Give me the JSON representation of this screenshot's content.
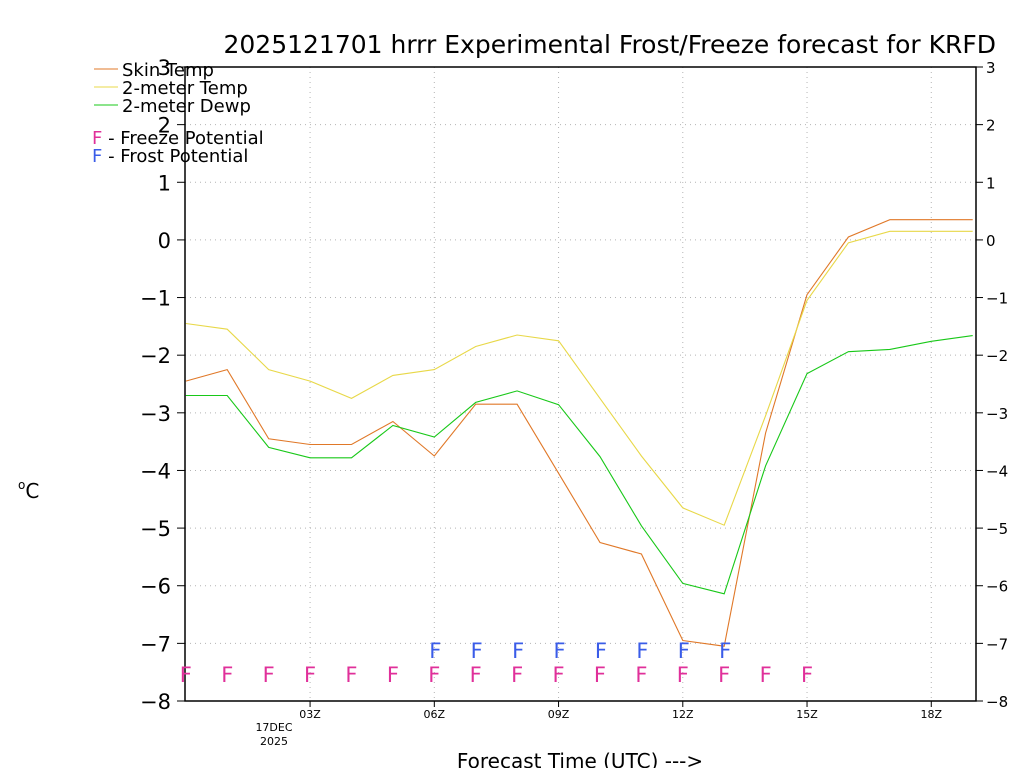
{
  "chart_data": {
    "type": "line",
    "title": "2025121701 hrrr Experimental Frost/Freeze forecast for KRFD",
    "xlabel": "Forecast Time (UTC) --->",
    "ylabel": "°C",
    "ylabel_superscript": "o",
    "ylabel_unit": "C",
    "ylim": [
      -8,
      3
    ],
    "y_ticks_left": [
      "-8",
      "-7",
      "-6",
      "-5",
      "-4",
      "-3",
      "-2",
      "-1",
      "0",
      "1",
      "2",
      "3"
    ],
    "y_ticks_right": [
      "-8",
      "-7",
      "-6",
      "-5",
      "-4",
      "-3",
      "-2",
      "-1",
      "0",
      "1",
      "2",
      "3"
    ],
    "x_hours": [
      0,
      1,
      2,
      3,
      4,
      5,
      6,
      7,
      8,
      9,
      10,
      11,
      12,
      13,
      14,
      15,
      16,
      17,
      18,
      19
    ],
    "x_ticks": [
      {
        "hour": 3,
        "label": "03Z"
      },
      {
        "hour": 6,
        "label": "06Z"
      },
      {
        "hour": 9,
        "label": "09Z"
      },
      {
        "hour": 12,
        "label": "12Z"
      },
      {
        "hour": 15,
        "label": "15Z"
      },
      {
        "hour": 18,
        "label": "18Z"
      }
    ],
    "date_label_line1": "17DEC",
    "date_label_line2": "2025",
    "series": [
      {
        "name": "Skin Temp",
        "color": "#e07828",
        "values": [
          -2.45,
          -2.25,
          -3.45,
          -3.55,
          -3.55,
          -3.15,
          -3.75,
          -2.85,
          -2.85,
          -4.05,
          -5.25,
          -5.45,
          -6.95,
          -7.05,
          -3.35,
          -0.95,
          0.05,
          0.35,
          0.35,
          0.35
        ]
      },
      {
        "name": "2-meter Temp",
        "color": "#e8d848",
        "values": [
          -1.45,
          -1.55,
          -2.25,
          -2.45,
          -2.75,
          -2.35,
          -2.25,
          -1.85,
          -1.65,
          -1.75,
          -2.75,
          -3.75,
          -4.65,
          -4.95,
          -3.05,
          -1.05,
          -0.05,
          0.15,
          0.15,
          0.15
        ]
      },
      {
        "name": "2-meter Dewp",
        "color": "#18c818",
        "values": [
          -2.7,
          -2.7,
          -3.6,
          -3.78,
          -3.78,
          -3.22,
          -3.42,
          -2.82,
          -2.62,
          -2.86,
          -3.76,
          -4.96,
          -5.96,
          -6.14,
          -3.92,
          -2.32,
          -1.94,
          -1.9,
          -1.76,
          -1.66
        ]
      }
    ],
    "legend": [
      {
        "label": "Skin Temp",
        "color": "#e07828"
      },
      {
        "label": "2-meter Temp",
        "color": "#e8d848"
      },
      {
        "label": "2-meter Dewp",
        "color": "#18c818"
      }
    ],
    "flag_legend": [
      {
        "letter": "F",
        "label": " - Freeze Potential",
        "color": "#e0309a"
      },
      {
        "letter": "F",
        "label": " - Frost Potential",
        "color": "#3a5ce8"
      }
    ],
    "freeze_flags": {
      "letter": "F",
      "color": "#e0309a",
      "hours": [
        0,
        1,
        2,
        3,
        4,
        5,
        6,
        7,
        8,
        9,
        10,
        11,
        12,
        13,
        14,
        15
      ]
    },
    "frost_flags": {
      "letter": "F",
      "color": "#3a5ce8",
      "hours": [
        6,
        7,
        8,
        9,
        10,
        11,
        12,
        13
      ]
    }
  }
}
